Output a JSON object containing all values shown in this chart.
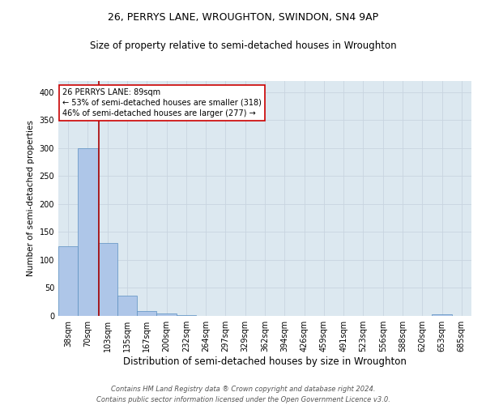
{
  "title1": "26, PERRYS LANE, WROUGHTON, SWINDON, SN4 9AP",
  "title2": "Size of property relative to semi-detached houses in Wroughton",
  "xlabel": "Distribution of semi-detached houses by size in Wroughton",
  "ylabel": "Number of semi-detached properties",
  "categories": [
    "38sqm",
    "70sqm",
    "103sqm",
    "135sqm",
    "167sqm",
    "200sqm",
    "232sqm",
    "264sqm",
    "297sqm",
    "329sqm",
    "362sqm",
    "394sqm",
    "426sqm",
    "459sqm",
    "491sqm",
    "523sqm",
    "556sqm",
    "588sqm",
    "620sqm",
    "653sqm",
    "685sqm"
  ],
  "values": [
    125,
    300,
    130,
    36,
    8,
    4,
    2,
    0,
    0,
    0,
    0,
    0,
    0,
    0,
    0,
    0,
    0,
    0,
    0,
    3,
    0
  ],
  "bar_color": "#aec6e8",
  "bar_edge_color": "#5a8fc0",
  "vline_x_index": 1.576,
  "vline_color": "#aa0000",
  "annotation_text": "26 PERRYS LANE: 89sqm\n← 53% of semi-detached houses are smaller (318)\n46% of semi-detached houses are larger (277) →",
  "annotation_box_color": "#ffffff",
  "annotation_box_edge": "#cc0000",
  "ylim": [
    0,
    420
  ],
  "yticks": [
    0,
    50,
    100,
    150,
    200,
    250,
    300,
    350,
    400
  ],
  "grid_color": "#c8d4e0",
  "bg_color": "#dce8f0",
  "footer": "Contains HM Land Registry data ® Crown copyright and database right 2024.\nContains public sector information licensed under the Open Government Licence v3.0.",
  "title1_fontsize": 9,
  "title2_fontsize": 8.5,
  "xlabel_fontsize": 8.5,
  "ylabel_fontsize": 7.5,
  "tick_fontsize": 7,
  "footer_fontsize": 6,
  "annot_fontsize": 7
}
